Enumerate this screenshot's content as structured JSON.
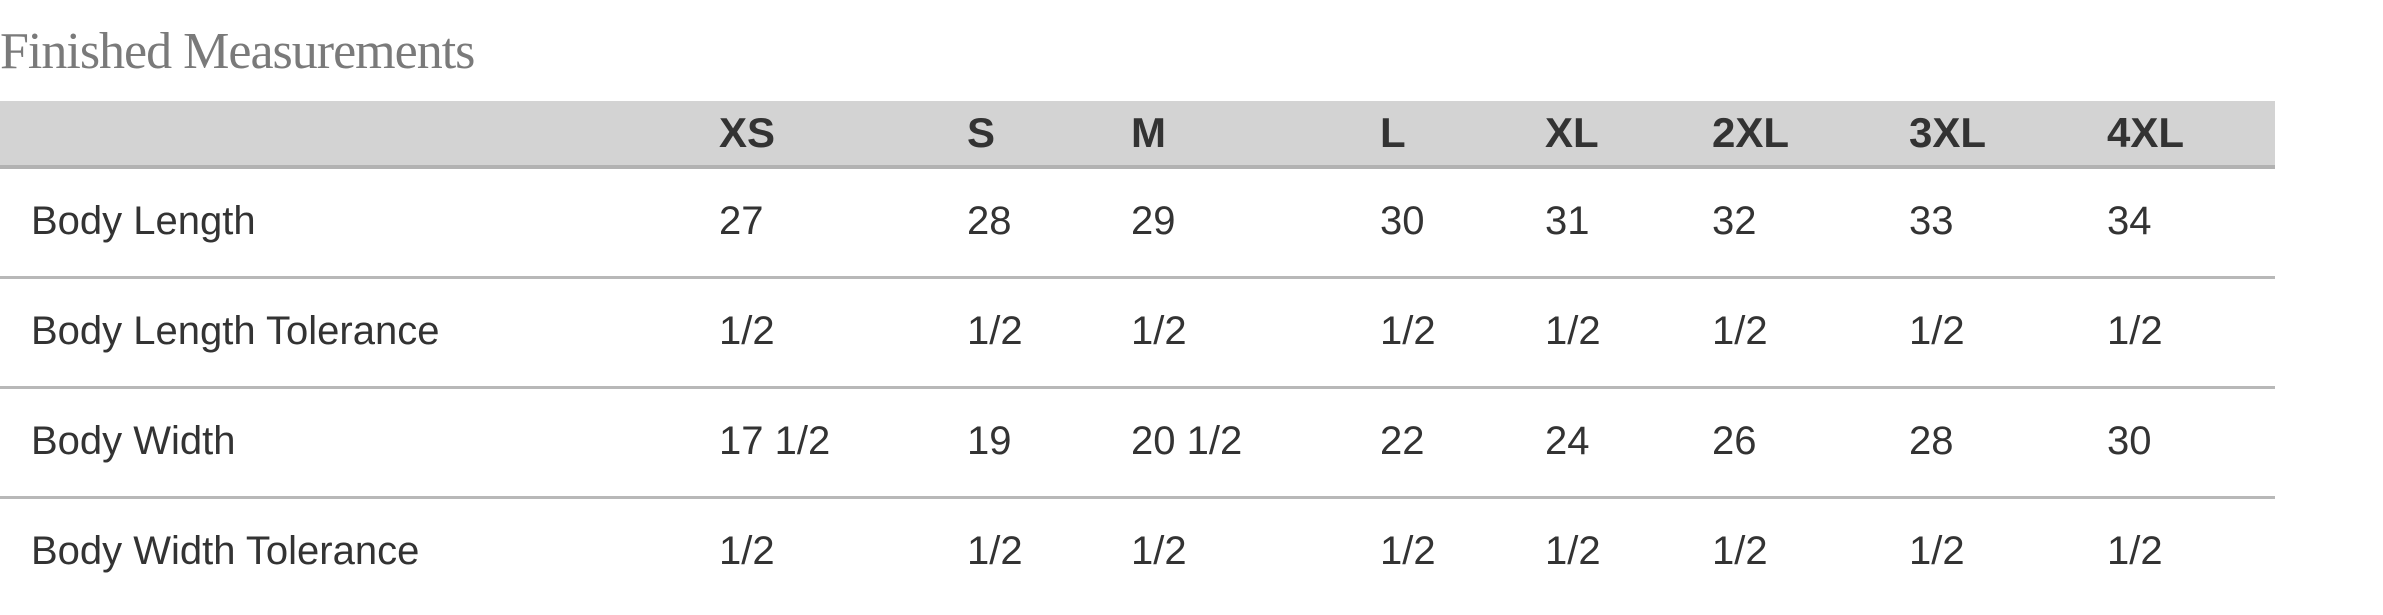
{
  "title": "Finished Measurements",
  "table": {
    "headers": [
      "",
      "XS",
      "S",
      "M",
      "L",
      "XL",
      "2XL",
      "3XL",
      "4XL"
    ],
    "rows": [
      [
        "Body Length",
        "27",
        "28",
        "29",
        "30",
        "31",
        "32",
        "33",
        "34"
      ],
      [
        "Body Length Tolerance",
        "1/2",
        "1/2",
        "1/2",
        "1/2",
        "1/2",
        "1/2",
        "1/2",
        "1/2"
      ],
      [
        "Body Width",
        "17 1/2",
        "19",
        "20 1/2",
        "22",
        "24",
        "26",
        "28",
        "30"
      ],
      [
        "Body Width Tolerance",
        "1/2",
        "1/2",
        "1/2",
        "1/2",
        "1/2",
        "1/2",
        "1/2",
        "1/2"
      ]
    ]
  }
}
